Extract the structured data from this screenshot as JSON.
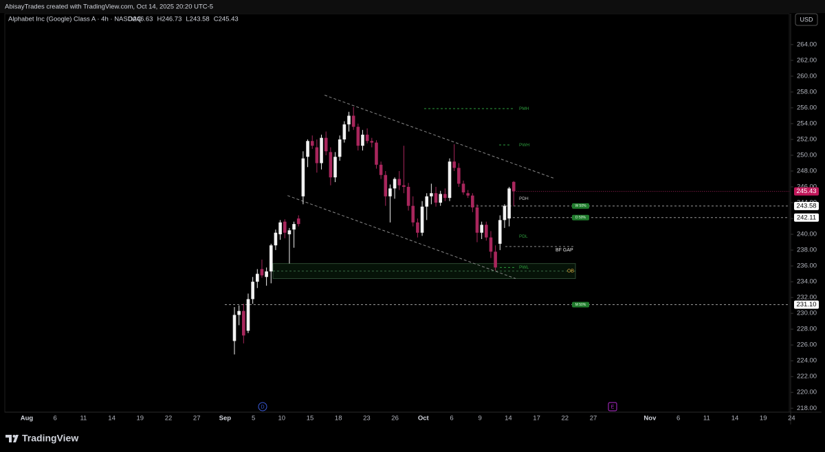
{
  "chart_data": {
    "type": "candlestick",
    "credit": "AbisayTrades created with TradingView.com, Oct 14, 2025 20:20 UTC-5",
    "title": "Alphabet Inc (Google) Class A · 4h · NASDAQ",
    "ohlc_legend": [
      "O246.63",
      "H246.73",
      "L243.58",
      "C245.43"
    ],
    "currency": "USD",
    "brand": "TradingView",
    "colors": {
      "up": "#f2f2f2",
      "down": "#a8265c",
      "level": "#2e9e3e",
      "neutral": "#8a8a8a"
    },
    "ylim": [
      217.5,
      267.9
    ],
    "yticks": [
      {
        "value": 218,
        "label": "218.00"
      },
      {
        "value": 220,
        "label": "220.00"
      },
      {
        "value": 222,
        "label": "222.00"
      },
      {
        "value": 224,
        "label": "224.00"
      },
      {
        "value": 226,
        "label": "226.00"
      },
      {
        "value": 228,
        "label": "228.00"
      },
      {
        "value": 230,
        "label": "230.00"
      },
      {
        "value": 232,
        "label": "232.00"
      },
      {
        "value": 234,
        "label": "234.00"
      },
      {
        "value": 236,
        "label": "236.00"
      },
      {
        "value": 238,
        "label": "238.00"
      },
      {
        "value": 240,
        "label": "240.00"
      },
      {
        "value": 242,
        "label": "242.00"
      },
      {
        "value": 244,
        "label": "244.00"
      },
      {
        "value": 246,
        "label": "246.00"
      },
      {
        "value": 248,
        "label": "248.00"
      },
      {
        "value": 250,
        "label": "250.00"
      },
      {
        "value": 252,
        "label": "252.00"
      },
      {
        "value": 254,
        "label": "254.00"
      },
      {
        "value": 256,
        "label": "256.00"
      },
      {
        "value": 258,
        "label": "258.00"
      },
      {
        "value": 260,
        "label": "260.00"
      },
      {
        "value": 262,
        "label": "262.00"
      },
      {
        "value": 264,
        "label": "264.00"
      }
    ],
    "x_labels": [
      "Aug",
      "6",
      "11",
      "14",
      "19",
      "22",
      "27",
      "Sep",
      "5",
      "10",
      "15",
      "18",
      "23",
      "26",
      "Oct",
      "6",
      "9",
      "14",
      "17",
      "22",
      "27",
      null,
      "Nov",
      "6",
      "11",
      "14",
      "19",
      "24"
    ],
    "candles": {
      "open": [
        226.5,
        229.8,
        230.3,
        227.8,
        231.8,
        234.0,
        235.6,
        234.6,
        235.3,
        238.6,
        240.0,
        241.6,
        240.0,
        240.6,
        242.0,
        244.8,
        249.8,
        251.8,
        251.0,
        249.0,
        252.2,
        250.4,
        247.2,
        249.8,
        252.0,
        253.9,
        255.0,
        253.6,
        251.2,
        252.6,
        251.8,
        251.6,
        248.8,
        247.5,
        244.8,
        245.8,
        247.0,
        246.2,
        246.0,
        243.6,
        241.5,
        240.2,
        243.5,
        244.8,
        245.2,
        244.0,
        245.1,
        244.6,
        249.2,
        248.4,
        246.4,
        245.2,
        244.9,
        243.4,
        240.2,
        241.2,
        239.6,
        237.8,
        238.8,
        241.8,
        242.0,
        246.63
      ],
      "high": [
        230.8,
        231.0,
        231.2,
        232.5,
        234.6,
        235.6,
        236.8,
        235.8,
        238.8,
        240.6,
        241.8,
        241.9,
        240.8,
        241.6,
        242.4,
        250.5,
        252.0,
        252.5,
        252.0,
        252.6,
        253.0,
        251.0,
        250.4,
        252.5,
        254.3,
        255.5,
        256.1,
        254.0,
        253.2,
        253.4,
        252.2,
        251.9,
        249.2,
        248.0,
        246.3,
        247.2,
        248.0,
        251.2,
        246.5,
        244.8,
        242.0,
        244.2,
        245.2,
        246.4,
        246.0,
        245.5,
        245.8,
        249.6,
        251.4,
        249.0,
        246.8,
        245.6,
        245.2,
        243.8,
        241.6,
        241.6,
        240.4,
        238.6,
        242.4,
        243.8,
        246.0,
        246.73
      ],
      "low": [
        224.8,
        228.5,
        226.2,
        227.5,
        231.2,
        233.2,
        234.5,
        233.5,
        233.8,
        238.0,
        239.3,
        239.5,
        236.3,
        238.3,
        241.0,
        243.8,
        248.5,
        250.8,
        247.8,
        248.2,
        250.0,
        246.2,
        246.6,
        249.3,
        251.6,
        253.0,
        253.2,
        250.6,
        250.6,
        251.5,
        251.0,
        248.3,
        247.0,
        243.6,
        241.5,
        244.5,
        245.6,
        245.2,
        243.0,
        241.0,
        239.6,
        239.8,
        241.8,
        243.8,
        243.5,
        243.6,
        244.2,
        244.2,
        248.0,
        246.0,
        245.0,
        244.6,
        242.8,
        239.0,
        239.4,
        239.2,
        237.0,
        235.4,
        238.0,
        240.8,
        241.0,
        243.58
      ],
      "close": [
        229.8,
        230.3,
        227.2,
        231.8,
        234.0,
        235.0,
        234.8,
        235.3,
        238.6,
        240.2,
        241.5,
        240.2,
        240.5,
        241.3,
        241.3,
        249.6,
        251.8,
        251.2,
        249.0,
        252.2,
        250.5,
        247.2,
        249.8,
        252.0,
        253.9,
        255.0,
        253.6,
        251.2,
        252.6,
        251.8,
        251.6,
        248.8,
        247.5,
        244.8,
        245.8,
        247.0,
        246.2,
        246.0,
        243.6,
        241.5,
        240.2,
        243.5,
        244.8,
        245.2,
        244.0,
        245.1,
        244.6,
        249.2,
        248.4,
        246.4,
        245.3,
        244.9,
        243.4,
        240.2,
        241.2,
        239.6,
        237.8,
        235.8,
        241.8,
        243.6,
        245.8,
        245.43
      ]
    },
    "trendlines": [
      {
        "from": [
          19.7,
          257.6
        ],
        "to": [
          69.7,
          247.1
        ]
      },
      {
        "from": [
          11.6,
          244.9
        ],
        "to": [
          61.4,
          234.4
        ]
      }
    ],
    "levels": [
      {
        "name": "PMH",
        "value": 255.9
      },
      {
        "name": "PWH",
        "value": 251.3
      },
      {
        "name": "PDH",
        "value": 244.5
      },
      {
        "name": "PDL",
        "value": 239.7
      },
      {
        "name": "BF GAP",
        "value": 238.45
      },
      {
        "name": "PWL",
        "value": 235.8
      }
    ],
    "fib_lines": [
      {
        "badge": "W 50%",
        "value": 243.58,
        "label": "243.58"
      },
      {
        "badge": "D 50%",
        "value": 242.11,
        "label": "242.11"
      },
      {
        "badge": "M 50%",
        "value": 231.1,
        "label": "231.10"
      }
    ],
    "last_price": {
      "value": 245.43,
      "label": "245.43"
    },
    "order_block": {
      "label": "OB",
      "top": 236.3,
      "bottom": 234.4
    },
    "markers": [
      "D",
      "E"
    ]
  }
}
